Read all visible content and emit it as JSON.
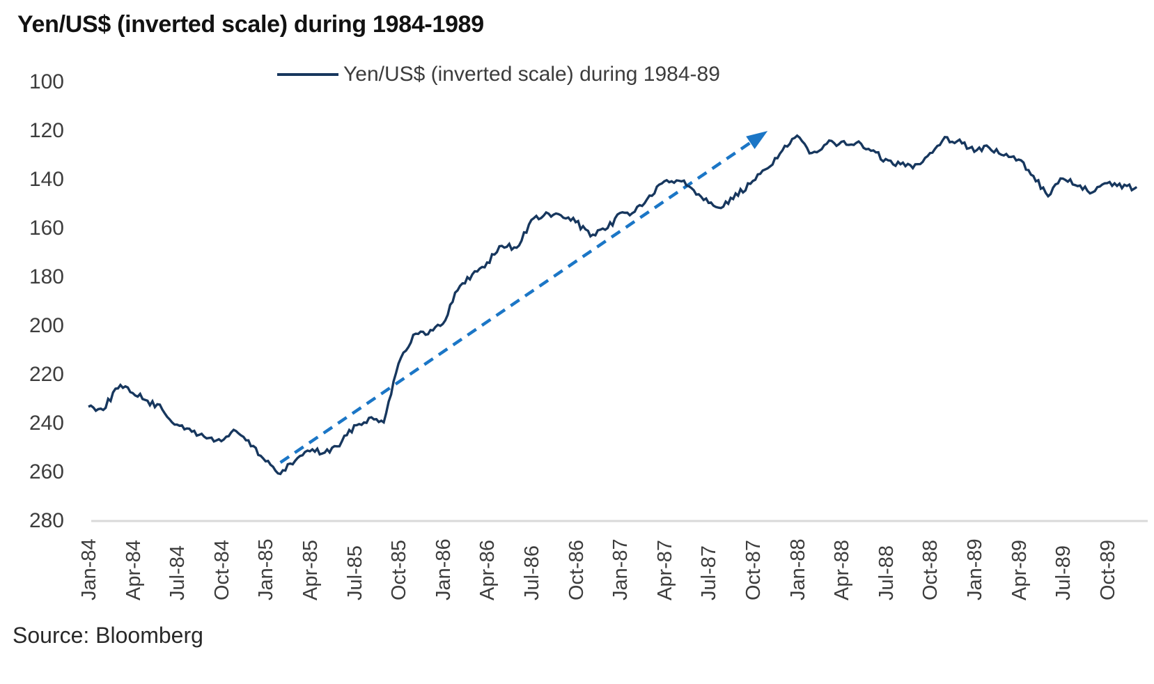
{
  "page": {
    "title": "Yen/US$ (inverted scale) during 1984-1989",
    "source": "Source: Bloomberg"
  },
  "chart_data": {
    "type": "line",
    "title": "Yen/US$ (inverted scale) during 1984-1989",
    "legend": {
      "label": "Yen/US$ (inverted scale) during 1984-89",
      "position": "top-center"
    },
    "grid": false,
    "colors": {
      "series_line": "#17375e",
      "trend_arrow": "#1b76c6",
      "axis_line": "#d9d9d9",
      "tick_text": "#3d3d3d"
    },
    "y_axis": {
      "inverted_scale": true,
      "min": 100,
      "max": 280,
      "tick_step": 20,
      "ticks": [
        100,
        120,
        140,
        160,
        180,
        200,
        220,
        240,
        260,
        280
      ]
    },
    "x_axis": {
      "tick_labels": [
        "Jan-84",
        "Apr-84",
        "Jul-84",
        "Oct-84",
        "Jan-85",
        "Apr-85",
        "Jul-85",
        "Oct-85",
        "Jan-86",
        "Apr-86",
        "Jul-86",
        "Oct-86",
        "Jan-87",
        "Apr-87",
        "Jul-87",
        "Oct-87",
        "Jan-88",
        "Apr-88",
        "Jul-88",
        "Oct-88",
        "Jan-89",
        "Apr-89",
        "Jul-89",
        "Oct-89"
      ],
      "tick_interval_months": 3
    },
    "categories": [
      "Jan-84",
      "Feb-84",
      "Mar-84",
      "Apr-84",
      "May-84",
      "Jun-84",
      "Jul-84",
      "Aug-84",
      "Sep-84",
      "Oct-84",
      "Nov-84",
      "Dec-84",
      "Jan-85",
      "Feb-85",
      "Mar-85",
      "Apr-85",
      "May-85",
      "Jun-85",
      "Jul-85",
      "Aug-85",
      "Sep-85",
      "Oct-85",
      "Nov-85",
      "Dec-85",
      "Jan-86",
      "Feb-86",
      "Mar-86",
      "Apr-86",
      "May-86",
      "Jun-86",
      "Jul-86",
      "Aug-86",
      "Sep-86",
      "Oct-86",
      "Nov-86",
      "Dec-86",
      "Jan-87",
      "Feb-87",
      "Mar-87",
      "Apr-87",
      "May-87",
      "Jun-87",
      "Jul-87",
      "Aug-87",
      "Sep-87",
      "Oct-87",
      "Nov-87",
      "Dec-87",
      "Jan-88",
      "Feb-88",
      "Mar-88",
      "Apr-88",
      "May-88",
      "Jun-88",
      "Jul-88",
      "Aug-88",
      "Sep-88",
      "Oct-88",
      "Nov-88",
      "Dec-88",
      "Jan-89",
      "Feb-89",
      "Mar-89",
      "Apr-89",
      "May-89",
      "Jun-89",
      "Jul-89",
      "Aug-89",
      "Sep-89",
      "Oct-89",
      "Nov-89",
      "Dec-89"
    ],
    "series": [
      {
        "name": "Yen/US$ (inverted scale) during 1984-89",
        "unit": "JPY per USD",
        "values": [
          233,
          234,
          225,
          227,
          231,
          234,
          241,
          243,
          246,
          247,
          243,
          249,
          255,
          261,
          255,
          251,
          252,
          249,
          241,
          238,
          239,
          215,
          204,
          203,
          199,
          185,
          179,
          174,
          167,
          168,
          157,
          154,
          155,
          157,
          163,
          161,
          154,
          153,
          147,
          141,
          140,
          144,
          149,
          151,
          146,
          141,
          135,
          128,
          122.5,
          129,
          125,
          125,
          125,
          128,
          132,
          134,
          134,
          129,
          123,
          124,
          128,
          127,
          130,
          132,
          138,
          147,
          139,
          143,
          145,
          142,
          143,
          143
        ]
      }
    ],
    "annotations": [
      {
        "type": "trend-arrow",
        "style": "dashed",
        "from_month": "Feb-85",
        "from_value": 256,
        "to_month": "Nov-87",
        "to_value": 120
      }
    ]
  }
}
